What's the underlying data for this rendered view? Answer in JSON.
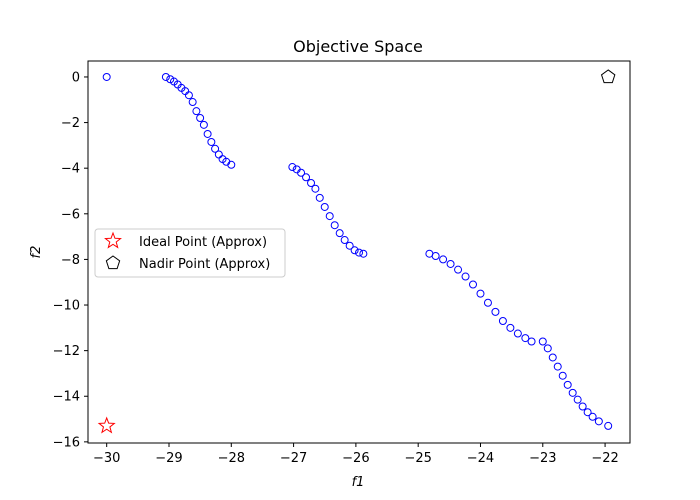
{
  "chart_data": {
    "type": "scatter",
    "title": "Objective Space",
    "xlabel": "f1",
    "ylabel": "f2",
    "xlim": [
      -30.3,
      -21.6
    ],
    "ylim": [
      -16.05,
      0.7
    ],
    "xticks": [
      -30,
      -29,
      -28,
      -27,
      -26,
      -25,
      -24,
      -23,
      -22
    ],
    "yticks": [
      0,
      -2,
      -4,
      -6,
      -8,
      -10,
      -12,
      -14,
      -16
    ],
    "grid": false,
    "legend_position": "center-left",
    "colors": {
      "points": "#0000ff",
      "ideal": "#ff0000",
      "nadir": "#000000"
    },
    "series": [
      {
        "marker": "circle-open",
        "points": [
          [
            -30.0,
            0.0
          ],
          [
            -29.05,
            0.0
          ],
          [
            -28.98,
            -0.1
          ],
          [
            -28.92,
            -0.2
          ],
          [
            -28.86,
            -0.33
          ],
          [
            -28.8,
            -0.48
          ],
          [
            -28.74,
            -0.62
          ],
          [
            -28.68,
            -0.8
          ],
          [
            -28.62,
            -1.1
          ],
          [
            -28.56,
            -1.5
          ],
          [
            -28.5,
            -1.8
          ],
          [
            -28.44,
            -2.1
          ],
          [
            -28.38,
            -2.5
          ],
          [
            -28.32,
            -2.85
          ],
          [
            -28.26,
            -3.15
          ],
          [
            -28.2,
            -3.4
          ],
          [
            -28.14,
            -3.6
          ],
          [
            -28.08,
            -3.72
          ],
          [
            -28.0,
            -3.85
          ],
          [
            -27.02,
            -3.95
          ],
          [
            -26.95,
            -4.05
          ],
          [
            -26.88,
            -4.2
          ],
          [
            -26.8,
            -4.4
          ],
          [
            -26.72,
            -4.65
          ],
          [
            -26.65,
            -4.9
          ],
          [
            -26.58,
            -5.3
          ],
          [
            -26.5,
            -5.7
          ],
          [
            -26.42,
            -6.1
          ],
          [
            -26.34,
            -6.5
          ],
          [
            -26.26,
            -6.85
          ],
          [
            -26.18,
            -7.15
          ],
          [
            -26.1,
            -7.4
          ],
          [
            -26.02,
            -7.6
          ],
          [
            -25.95,
            -7.7
          ],
          [
            -25.88,
            -7.75
          ],
          [
            -24.82,
            -7.75
          ],
          [
            -24.72,
            -7.85
          ],
          [
            -24.6,
            -8.0
          ],
          [
            -24.48,
            -8.2
          ],
          [
            -24.36,
            -8.45
          ],
          [
            -24.24,
            -8.75
          ],
          [
            -24.12,
            -9.1
          ],
          [
            -24.0,
            -9.5
          ],
          [
            -23.88,
            -9.9
          ],
          [
            -23.76,
            -10.3
          ],
          [
            -23.64,
            -10.7
          ],
          [
            -23.52,
            -11.0
          ],
          [
            -23.4,
            -11.25
          ],
          [
            -23.28,
            -11.45
          ],
          [
            -23.18,
            -11.6
          ],
          [
            -23.0,
            -11.6
          ],
          [
            -22.92,
            -11.9
          ],
          [
            -22.84,
            -12.3
          ],
          [
            -22.76,
            -12.7
          ],
          [
            -22.68,
            -13.1
          ],
          [
            -22.6,
            -13.5
          ],
          [
            -22.52,
            -13.85
          ],
          [
            -22.44,
            -14.15
          ],
          [
            -22.36,
            -14.45
          ],
          [
            -22.28,
            -14.7
          ],
          [
            -22.2,
            -14.9
          ],
          [
            -22.1,
            -15.1
          ],
          [
            -21.95,
            -15.3
          ]
        ]
      },
      {
        "name": "Ideal Point (Approx)",
        "marker": "star-open",
        "points": [
          [
            -30.0,
            -15.3
          ]
        ]
      },
      {
        "name": "Nadir Point (Approx)",
        "marker": "pentagon-open",
        "points": [
          [
            -21.95,
            0.0
          ]
        ]
      }
    ]
  }
}
